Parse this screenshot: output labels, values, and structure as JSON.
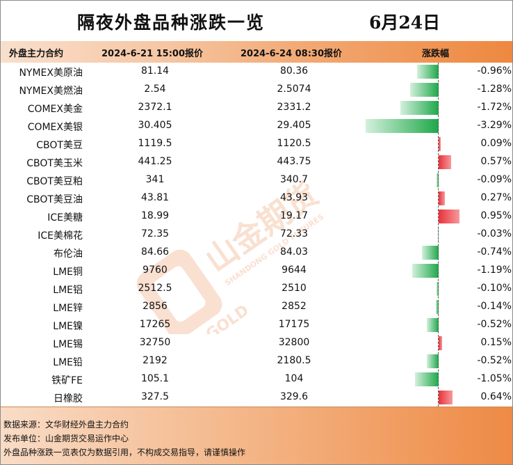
{
  "title": "隔夜外盘品种涨跌一览",
  "date": "6月24日",
  "header": {
    "col_name": "外盘主力合约",
    "col_v1": "2024-6-21 15:00报价",
    "col_v2": "2024-6-24 08:30报价",
    "col_chg": "涨跌幅"
  },
  "chart_data": {
    "type": "bar",
    "categories": [
      "NYMEX美原油",
      "NYMEX美燃油",
      "COMEX美金",
      "COMEX美银",
      "CBOT美豆",
      "CBOT美玉米",
      "CBOT美豆粕",
      "CBOT美豆油",
      "ICE美糖",
      "ICE美棉花",
      "布伦油",
      "LME铜",
      "LME铝",
      "LME锌",
      "LME镍",
      "LME锡",
      "LME铅",
      "铁矿FE",
      "日橡胶"
    ],
    "price_0621": [
      "81.14",
      "2.54",
      "2372.1",
      "30.405",
      "1119.5",
      "441.25",
      "341",
      "43.81",
      "18.99",
      "72.35",
      "84.66",
      "9760",
      "2512.5",
      "2856",
      "17265",
      "32750",
      "2192",
      "105.1",
      "327.5"
    ],
    "price_0624": [
      "80.36",
      "2.5074",
      "2331.2",
      "29.405",
      "1120.5",
      "443.75",
      "340.7",
      "43.93",
      "19.17",
      "72.33",
      "84.03",
      "9644",
      "2510",
      "2852",
      "17175",
      "32800",
      "2180.5",
      "104",
      "329.6"
    ],
    "values": [
      -0.96,
      -1.28,
      -1.72,
      -3.29,
      0.09,
      0.57,
      -0.09,
      0.27,
      0.95,
      -0.03,
      -0.74,
      -1.19,
      -0.1,
      -0.14,
      -0.52,
      0.15,
      -0.52,
      -1.05,
      0.64
    ],
    "labels": [
      "-0.96%",
      "-1.28%",
      "-1.72%",
      "-3.29%",
      "0.09%",
      "0.57%",
      "-0.09%",
      "0.27%",
      "0.95%",
      "-0.03%",
      "-0.74%",
      "-1.19%",
      "-0.10%",
      "-0.14%",
      "-0.52%",
      "0.15%",
      "-0.52%",
      "-1.05%",
      "0.64%"
    ],
    "colors": {
      "up": "#e8323a",
      "down": "#1fa84a"
    }
  },
  "footer": {
    "source": "数据来源：文华财经外盘主力合约",
    "publisher": "发布单位：山金期货交易运作中心",
    "disclaimer": "外盘品种涨跌一览表仅为数据引用，不构成交易指导，请谨慎操作"
  },
  "watermark": {
    "brand_cn": "山金期货",
    "brand_en": "SHANDONG GOLD FUTURES",
    "logo_text": "SD-GOLD"
  }
}
